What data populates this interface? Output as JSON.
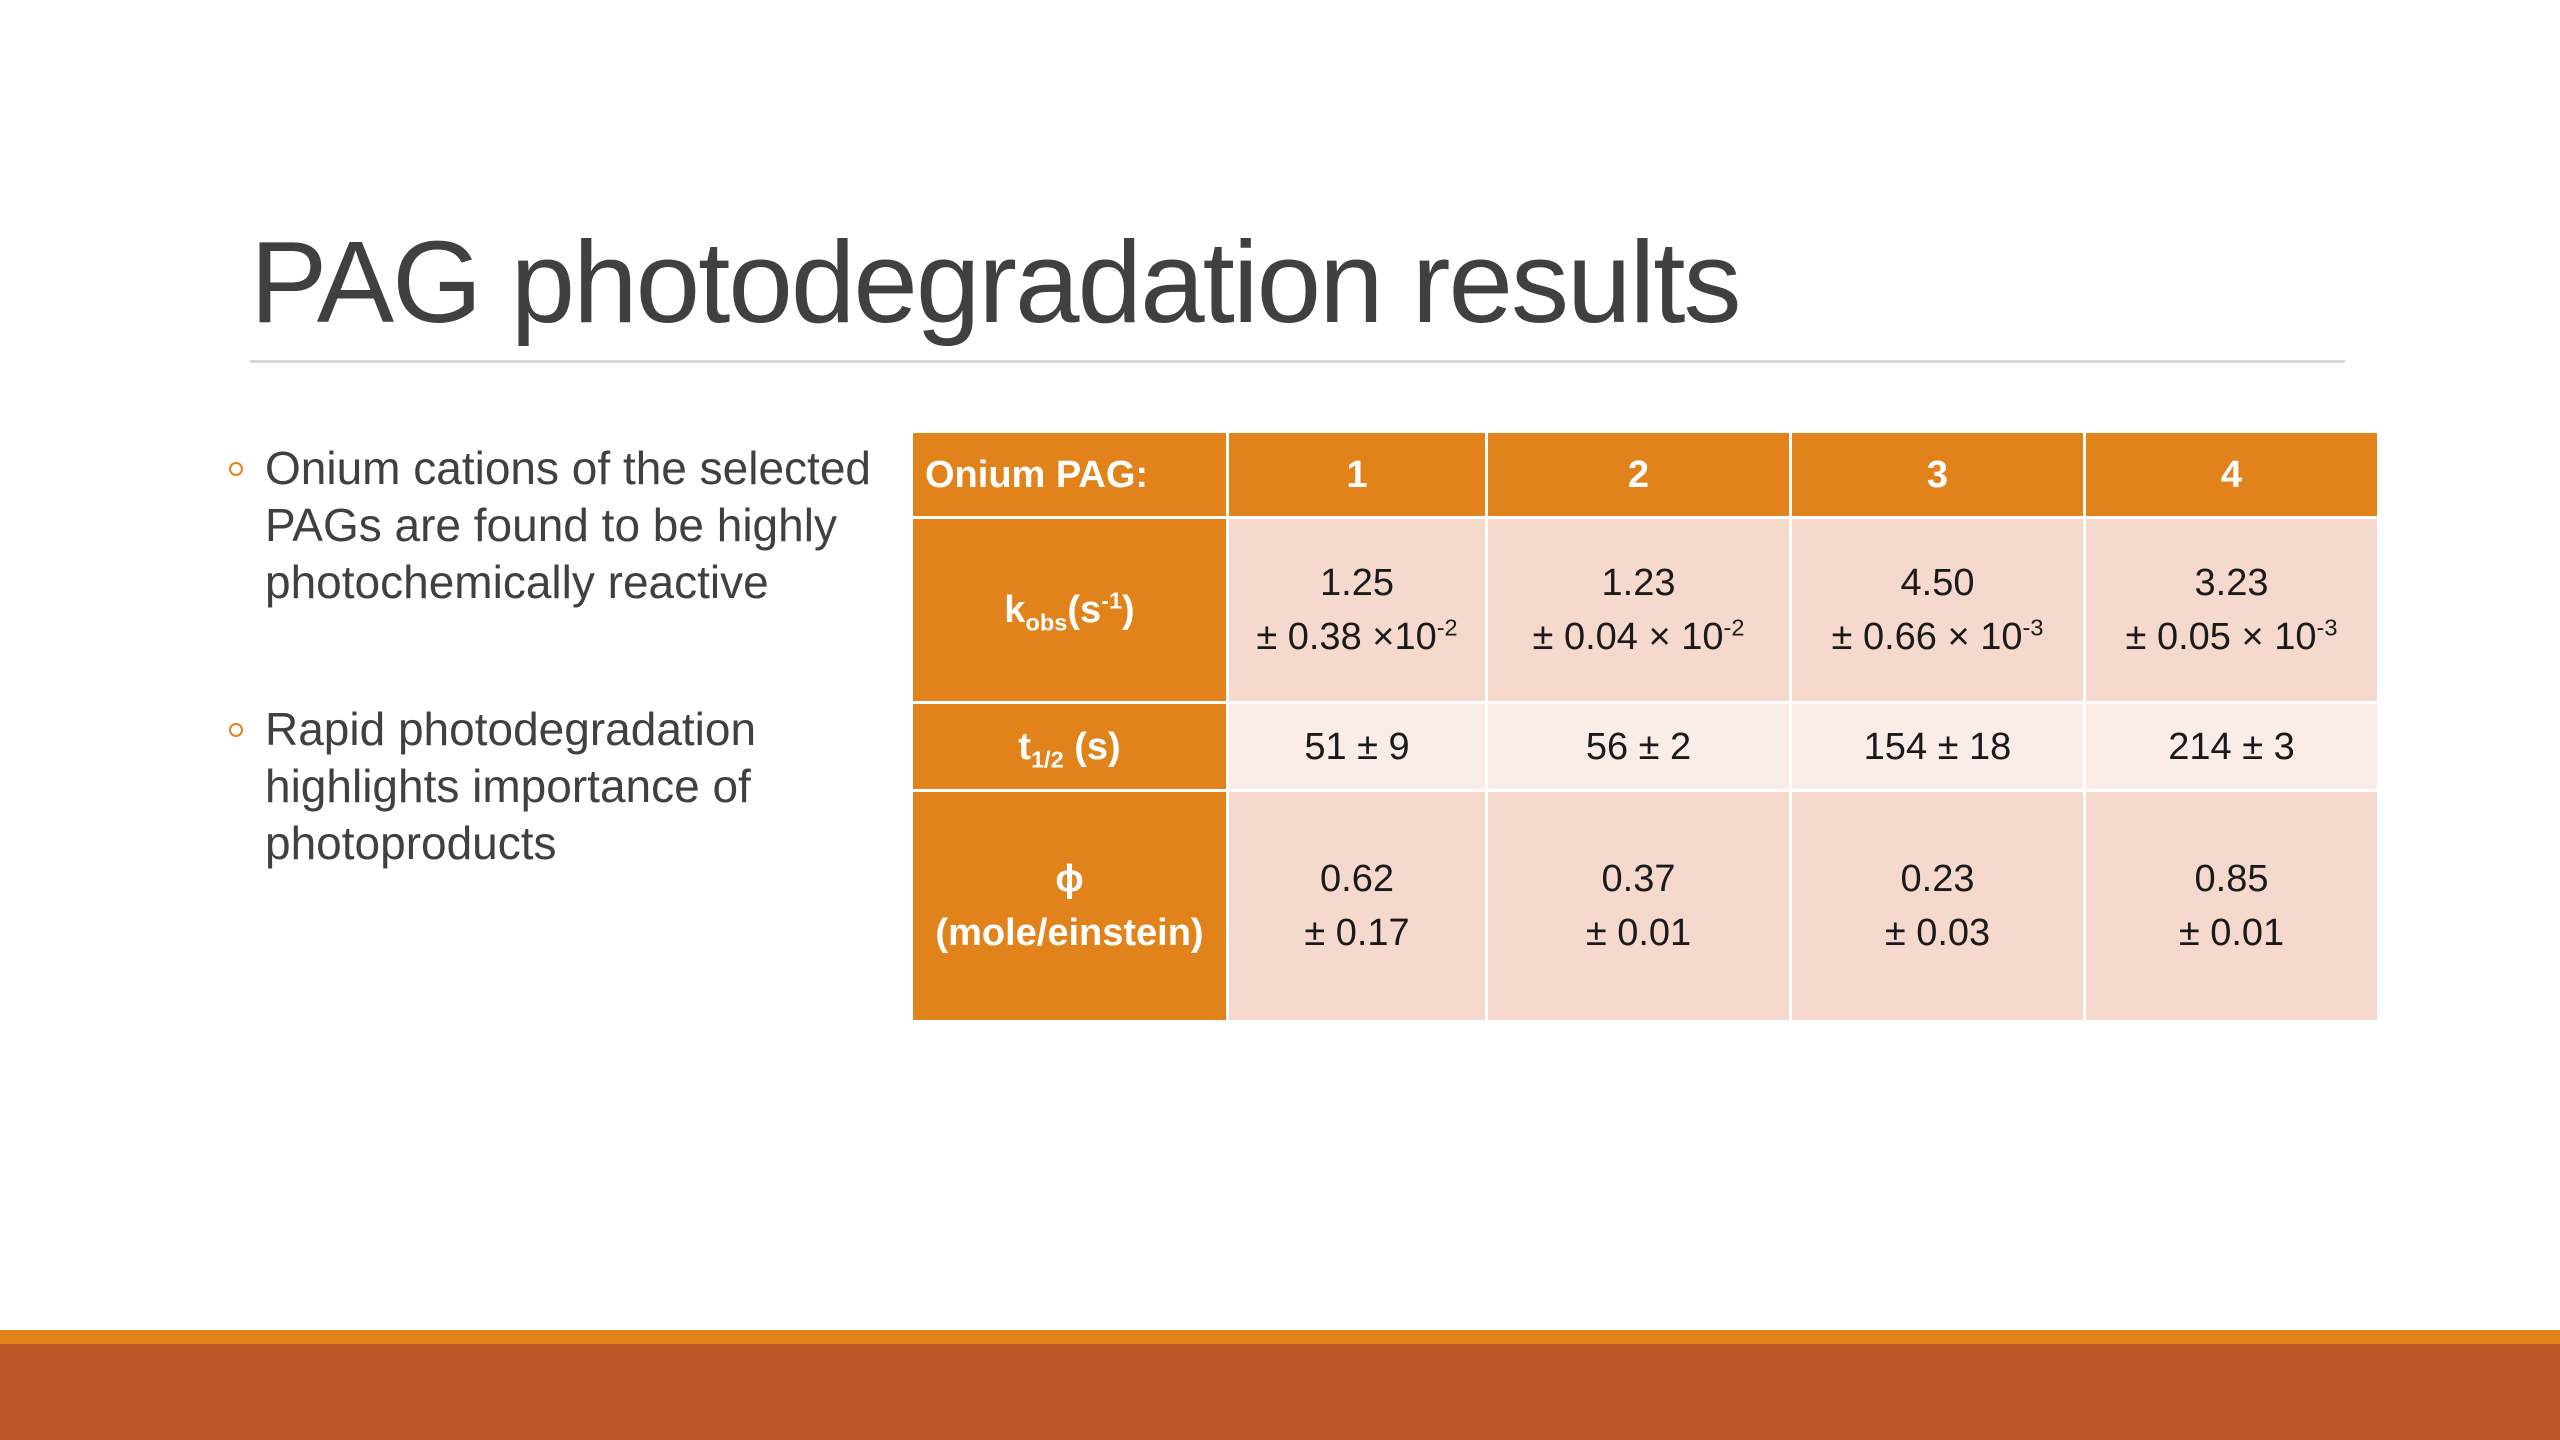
{
  "slide": {
    "title": "PAG photodegradation results"
  },
  "bullets": [
    {
      "text": "Onium cations of the selected PAGs are found to be highly photochemically reactive"
    },
    {
      "text": "Rapid photodegradation highlights importance of photoproducts"
    }
  ],
  "table": {
    "corner": "Onium PAG:",
    "columns": [
      "1",
      "2",
      "3",
      "4"
    ],
    "rows": {
      "kobs": {
        "label_main": "k",
        "label_sub": "obs",
        "label_mid": "(s",
        "label_sup": "-1",
        "label_end": ")",
        "cells": [
          {
            "value": "1.25",
            "err_prefix": "± 0.38 ×10",
            "err_exp": "-2"
          },
          {
            "value": "1.23",
            "err_prefix": "± 0.04 × 10",
            "err_exp": "-2"
          },
          {
            "value": "4.50",
            "err_prefix": "± 0.66 × 10",
            "err_exp": "-3"
          },
          {
            "value": "3.23",
            "err_prefix": "± 0.05 × 10",
            "err_exp": "-3"
          }
        ]
      },
      "thalf": {
        "label_main": "t",
        "label_sub": "1/2",
        "label_end": " (s)",
        "cells": [
          "51 ± 9",
          "56 ± 2",
          "154 ± 18",
          "214 ± 3"
        ]
      },
      "phi": {
        "label_line1": "ϕ",
        "label_line2": "(mole/einstein)",
        "cells": [
          {
            "value": "0.62",
            "err": "± 0.17"
          },
          {
            "value": "0.37",
            "err": "± 0.01"
          },
          {
            "value": "0.23",
            "err": "± 0.03"
          },
          {
            "value": "0.85",
            "err": "± 0.01"
          }
        ]
      }
    }
  },
  "colors": {
    "accent": "#e2821a",
    "footer": "#bb5628",
    "cell_dark": "#f5d9cc",
    "cell_light": "#faece6",
    "text": "#404040"
  }
}
